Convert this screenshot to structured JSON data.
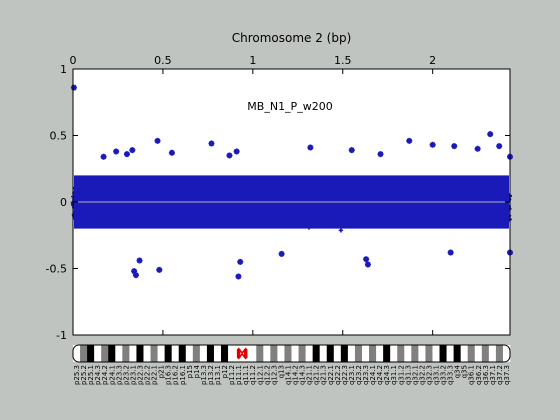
{
  "chart_data": {
    "type": "scatter",
    "title": "Chromosome 2 (bp)",
    "annotation": "MB_N1_P_w200",
    "x_ticks": [
      "0",
      "0.5",
      "1",
      "1.5",
      "2"
    ],
    "x_tick_values": [
      0,
      0.5,
      1,
      1.5,
      2
    ],
    "x_max": 2.43,
    "y_ticks": [
      "1",
      "0.5",
      "0",
      "-0.5",
      "-1"
    ],
    "y_tick_values": [
      1,
      0.5,
      0,
      -0.5,
      -1
    ],
    "ylim": [
      -1,
      1
    ],
    "series_color": "#1a1ab8",
    "zero_line_color": "#b0b0c8",
    "outliers": [
      {
        "x": 0.005,
        "y": 0.86
      },
      {
        "x": 0.17,
        "y": 0.34
      },
      {
        "x": 0.24,
        "y": 0.38
      },
      {
        "x": 0.3,
        "y": 0.36
      },
      {
        "x": 0.33,
        "y": 0.39
      },
      {
        "x": 0.47,
        "y": 0.46
      },
      {
        "x": 0.55,
        "y": 0.37
      },
      {
        "x": 0.77,
        "y": 0.44
      },
      {
        "x": 0.87,
        "y": 0.35
      },
      {
        "x": 0.91,
        "y": 0.38
      },
      {
        "x": 1.32,
        "y": 0.41
      },
      {
        "x": 1.55,
        "y": 0.39
      },
      {
        "x": 1.71,
        "y": 0.36
      },
      {
        "x": 1.87,
        "y": 0.46
      },
      {
        "x": 2.0,
        "y": 0.43
      },
      {
        "x": 2.12,
        "y": 0.42
      },
      {
        "x": 2.25,
        "y": 0.4
      },
      {
        "x": 2.32,
        "y": 0.51
      },
      {
        "x": 2.37,
        "y": 0.42
      },
      {
        "x": 2.43,
        "y": 0.34
      },
      {
        "x": 0.34,
        "y": -0.52
      },
      {
        "x": 0.35,
        "y": -0.55
      },
      {
        "x": 0.37,
        "y": -0.44
      },
      {
        "x": 0.48,
        "y": -0.51
      },
      {
        "x": 0.92,
        "y": -0.56
      },
      {
        "x": 0.93,
        "y": -0.45
      },
      {
        "x": 1.16,
        "y": -0.39
      },
      {
        "x": 1.63,
        "y": -0.43
      },
      {
        "x": 1.64,
        "y": -0.47
      },
      {
        "x": 2.1,
        "y": -0.38
      },
      {
        "x": 2.43,
        "y": -0.38
      }
    ],
    "cytobands": [
      {
        "label": "p25.3",
        "stain": "white"
      },
      {
        "label": "p25.2",
        "stain": "gray"
      },
      {
        "label": "p25.1",
        "stain": "black"
      },
      {
        "label": "p24.3",
        "stain": "white"
      },
      {
        "label": "p24.2",
        "stain": "gray"
      },
      {
        "label": "p24.1",
        "stain": "black"
      },
      {
        "label": "p23.3",
        "stain": "white"
      },
      {
        "label": "p23.2",
        "stain": "gray"
      },
      {
        "label": "p23.1",
        "stain": "white"
      },
      {
        "label": "p22.3",
        "stain": "black"
      },
      {
        "label": "p22.2",
        "stain": "white"
      },
      {
        "label": "p22.1",
        "stain": "gray"
      },
      {
        "label": "p21",
        "stain": "white"
      },
      {
        "label": "p16.3",
        "stain": "black"
      },
      {
        "label": "p16.2",
        "stain": "white"
      },
      {
        "label": "p16.1",
        "stain": "black"
      },
      {
        "label": "p15",
        "stain": "white"
      },
      {
        "label": "p14",
        "stain": "gray"
      },
      {
        "label": "p13.3",
        "stain": "white"
      },
      {
        "label": "p13.2",
        "stain": "black"
      },
      {
        "label": "p13.1",
        "stain": "white"
      },
      {
        "label": "p12",
        "stain": "black"
      },
      {
        "label": "p11.2",
        "stain": "white"
      },
      {
        "label": "p11.1",
        "stain": "centromere"
      },
      {
        "label": "q11.1",
        "stain": "centromere"
      },
      {
        "label": "q11.2",
        "stain": "white"
      },
      {
        "label": "q12.1",
        "stain": "gray"
      },
      {
        "label": "q12.2",
        "stain": "white"
      },
      {
        "label": "q12.3",
        "stain": "gray"
      },
      {
        "label": "q13",
        "stain": "white"
      },
      {
        "label": "q14.1",
        "stain": "gray"
      },
      {
        "label": "q14.2",
        "stain": "white"
      },
      {
        "label": "q14.3",
        "stain": "gray"
      },
      {
        "label": "q21.1",
        "stain": "white"
      },
      {
        "label": "q21.2",
        "stain": "black"
      },
      {
        "label": "q21.3",
        "stain": "white"
      },
      {
        "label": "q22.1",
        "stain": "black"
      },
      {
        "label": "q22.2",
        "stain": "white"
      },
      {
        "label": "q22.3",
        "stain": "black"
      },
      {
        "label": "q23.1",
        "stain": "white"
      },
      {
        "label": "q23.2",
        "stain": "gray"
      },
      {
        "label": "q23.3",
        "stain": "white"
      },
      {
        "label": "q24.1",
        "stain": "gray"
      },
      {
        "label": "q24.2",
        "stain": "white"
      },
      {
        "label": "q24.3",
        "stain": "black"
      },
      {
        "label": "q31.1",
        "stain": "white"
      },
      {
        "label": "q31.2",
        "stain": "gray"
      },
      {
        "label": "q31.3",
        "stain": "white"
      },
      {
        "label": "q32.1",
        "stain": "gray"
      },
      {
        "label": "q32.2",
        "stain": "white"
      },
      {
        "label": "q32.3",
        "stain": "gray"
      },
      {
        "label": "q33.1",
        "stain": "white"
      },
      {
        "label": "q33.2",
        "stain": "black"
      },
      {
        "label": "q33.3",
        "stain": "white"
      },
      {
        "label": "q34",
        "stain": "black"
      },
      {
        "label": "q35",
        "stain": "white"
      },
      {
        "label": "q36.1",
        "stain": "gray"
      },
      {
        "label": "q36.2",
        "stain": "white"
      },
      {
        "label": "q36.3",
        "stain": "gray"
      },
      {
        "label": "q37.1",
        "stain": "white"
      },
      {
        "label": "q37.2",
        "stain": "gray"
      },
      {
        "label": "q37.3",
        "stain": "white"
      }
    ]
  }
}
